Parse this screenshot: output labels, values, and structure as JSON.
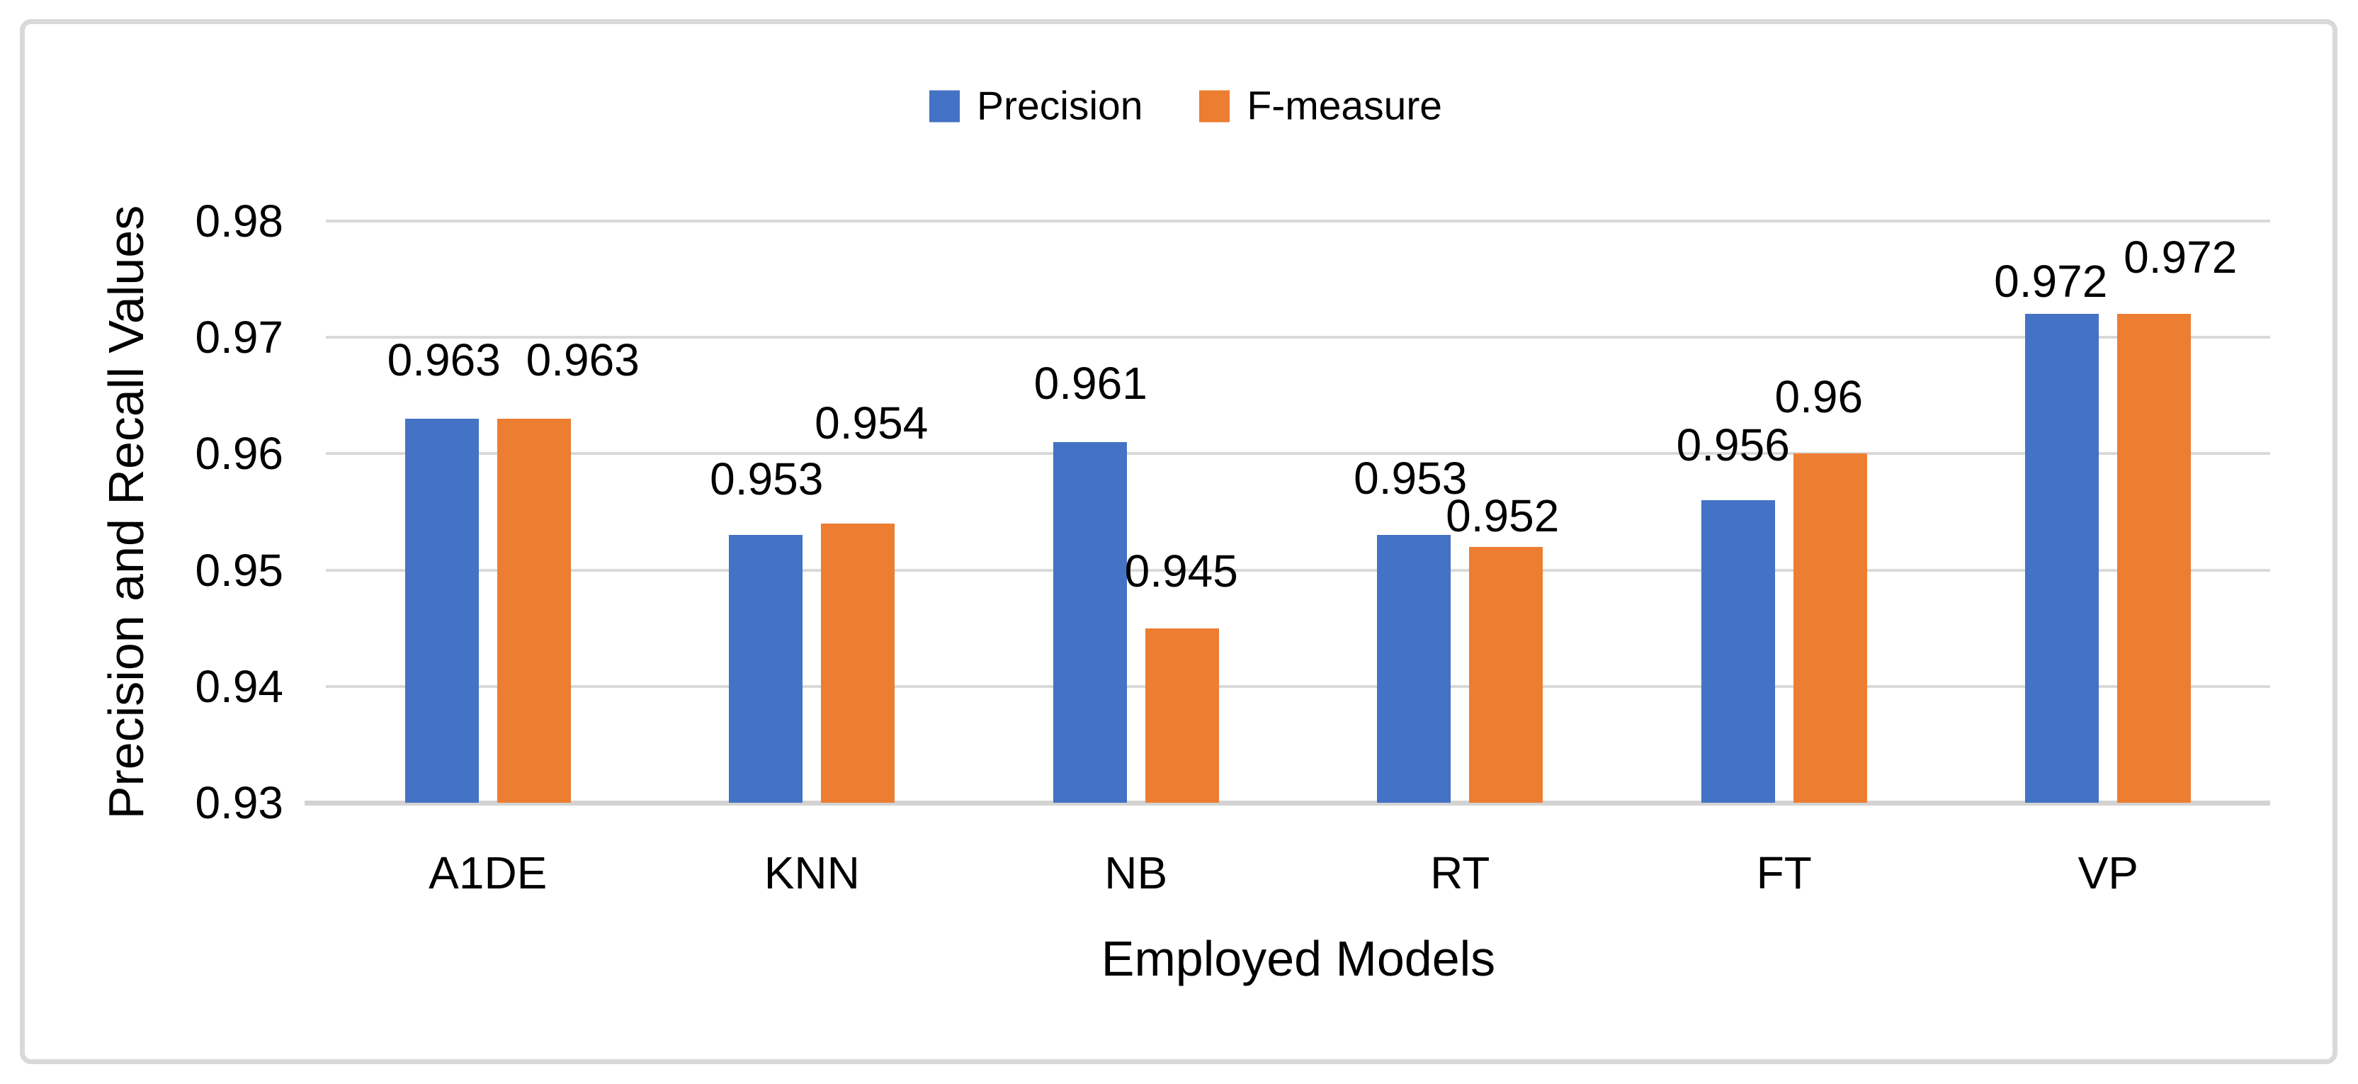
{
  "figure": {
    "background": "#FFFFFF",
    "border_color": "#D9D9D9"
  },
  "legend": {
    "items": [
      {
        "label": "Precision",
        "color": "#4472C4"
      },
      {
        "label": "F-measure",
        "color": "#ED7D31"
      }
    ]
  },
  "chart_data": {
    "type": "bar",
    "title": "",
    "categories": [
      "A1DE",
      "KNN",
      "NB",
      "RT",
      "FT",
      "VP"
    ],
    "series": [
      {
        "name": "Precision",
        "color": "#4472C4",
        "values": [
          0.963,
          0.953,
          0.961,
          0.953,
          0.956,
          0.972
        ]
      },
      {
        "name": "F-measure",
        "color": "#ED7D31",
        "values": [
          0.963,
          0.954,
          0.945,
          0.952,
          0.96,
          0.972
        ]
      }
    ],
    "data_labels_shown": true,
    "xlabel": "Employed Models",
    "ylabel": "Precision and Recall Values",
    "y_ticks": [
      0.98,
      0.97,
      0.96,
      0.95,
      0.94,
      0.93
    ],
    "ylim": [
      0.93,
      0.98
    ],
    "grid": true,
    "gridline_color": "#D9D9D9",
    "legend_position": "top"
  }
}
